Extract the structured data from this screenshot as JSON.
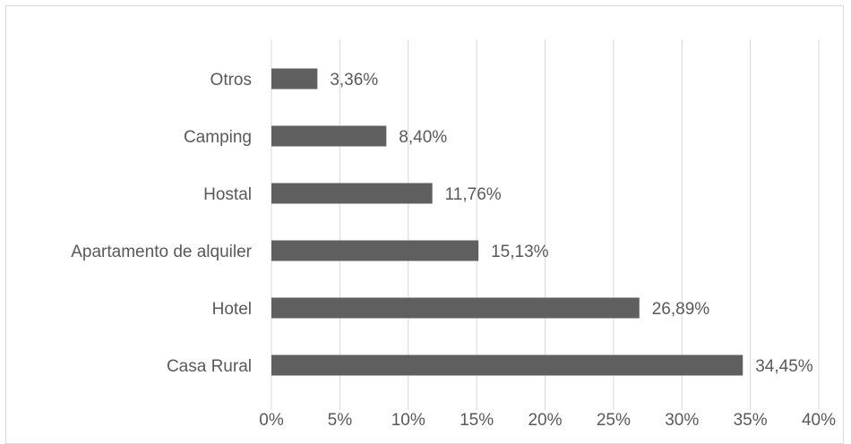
{
  "chart_data": {
    "type": "bar",
    "orientation": "horizontal",
    "categories": [
      "Casa Rural",
      "Hotel",
      "Apartamento de alquiler",
      "Hostal",
      "Camping",
      "Otros"
    ],
    "values": [
      34.45,
      26.89,
      15.13,
      11.76,
      8.4,
      3.36
    ],
    "value_labels": [
      "34,45%",
      "26,89%",
      "15,13%",
      "11,76%",
      "8,40%",
      "3,36%"
    ],
    "title": "",
    "xlabel": "",
    "ylabel": "",
    "xlim": [
      0,
      40
    ],
    "x_ticks": [
      0,
      5,
      10,
      15,
      20,
      25,
      30,
      35,
      40
    ],
    "x_tick_labels": [
      "0%",
      "5%",
      "10%",
      "15%",
      "20%",
      "25%",
      "30%",
      "35%",
      "40%"
    ],
    "grid": true,
    "legend": "none",
    "bar_color": "#5f5f5f",
    "grid_color": "#d9d9d9"
  }
}
